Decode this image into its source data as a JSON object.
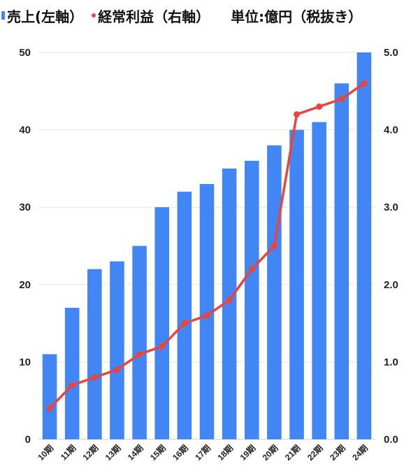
{
  "legend": {
    "sales_label": "売上(左軸）",
    "profit_label": "経常利益（右軸）",
    "unit_label": "単位:億円（税抜き）"
  },
  "colors": {
    "bar": "#4285f4",
    "line": "#e8453c",
    "grid": "#e6e6e6"
  },
  "chart_data": {
    "type": "bar",
    "title": "",
    "categories": [
      "10期",
      "11期",
      "12期",
      "13期",
      "14期",
      "15期",
      "16期",
      "17期",
      "18期",
      "19期",
      "20期",
      "21期",
      "22期",
      "23期",
      "24期"
    ],
    "series": [
      {
        "name": "売上(左軸）",
        "type": "bar",
        "axis": "left",
        "values": [
          11,
          17,
          22,
          23,
          25,
          30,
          32,
          33,
          35,
          36,
          38,
          40,
          41,
          46,
          50
        ]
      },
      {
        "name": "経常利益（右軸）",
        "type": "line",
        "axis": "right",
        "values": [
          0.4,
          0.7,
          0.8,
          0.9,
          1.1,
          1.2,
          1.5,
          1.6,
          1.8,
          2.2,
          2.5,
          4.2,
          4.3,
          4.4,
          4.6
        ]
      }
    ],
    "y_left": {
      "ylim": [
        0,
        50
      ],
      "ticks": [
        "0",
        "10",
        "20",
        "30",
        "40",
        "50"
      ]
    },
    "y_right": {
      "ylim": [
        0,
        5
      ],
      "ticks": [
        "0.0",
        "1.0",
        "2.0",
        "3.0",
        "4.0",
        "5.0"
      ]
    },
    "grid": true
  }
}
